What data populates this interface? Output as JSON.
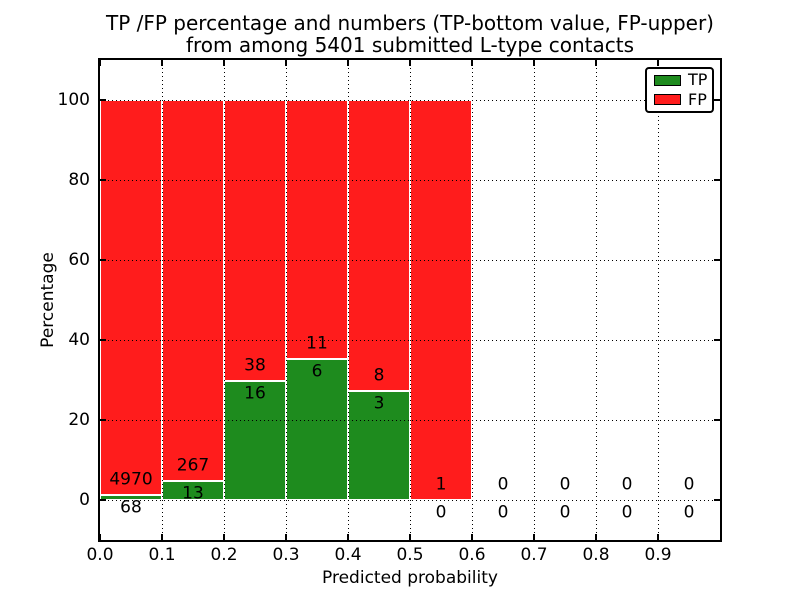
{
  "figure": {
    "title_line1": "TP /FP percentage and numbers (TP-bottom value, FP-upper)",
    "title_line2": "from among 5401 submitted L-type contacts"
  },
  "chart_data": {
    "type": "bar",
    "stacked": true,
    "bars_normalized_to_100_percent": true,
    "title": "TP /FP percentage and numbers (TP-bottom value, FP-upper) from among 5401 submitted L-type contacts",
    "xlabel": "Predicted probability",
    "ylabel": "Percentage",
    "xlim": [
      0.0,
      1.0
    ],
    "ylim": [
      -10,
      110
    ],
    "x_ticks": [
      0.0,
      0.1,
      0.2,
      0.3,
      0.4,
      0.5,
      0.6,
      0.7,
      0.8,
      0.9
    ],
    "x_tick_labels": [
      "0.0",
      "0.1",
      "0.2",
      "0.3",
      "0.4",
      "0.5",
      "0.6",
      "0.7",
      "0.8",
      "0.9"
    ],
    "y_ticks": [
      0,
      20,
      40,
      60,
      80,
      100
    ],
    "y_tick_labels": [
      "0",
      "20",
      "40",
      "60",
      "80",
      "100"
    ],
    "grid": true,
    "grid_style": "dotted",
    "bin_width": 0.1,
    "bin_starts": [
      0.0,
      0.1,
      0.2,
      0.3,
      0.4,
      0.5,
      0.6,
      0.7,
      0.8,
      0.9
    ],
    "series": [
      {
        "name": "TP",
        "color": "#1e8b1e",
        "counts": [
          68,
          13,
          16,
          6,
          3,
          0,
          0,
          0,
          0,
          0
        ]
      },
      {
        "name": "FP",
        "color": "#ff1c1c",
        "counts": [
          4970,
          267,
          38,
          11,
          8,
          1,
          0,
          0,
          0,
          0
        ]
      }
    ],
    "total_contacts": 5401,
    "legend_position": "upper right"
  }
}
